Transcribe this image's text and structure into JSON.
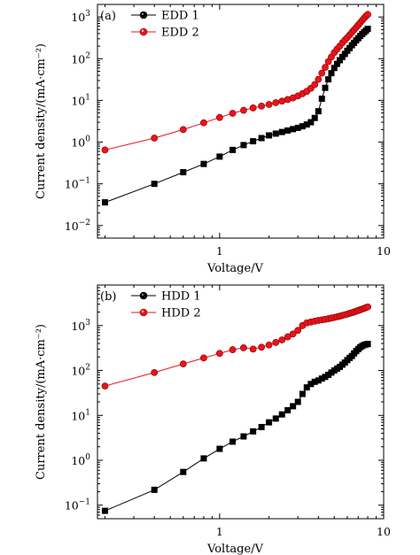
{
  "chart_data": [
    {
      "type": "line",
      "panel": "(a)",
      "xlabel": "Voltage/V",
      "ylabel": "Current density/(mA·cm⁻²)",
      "xscale": "log",
      "yscale": "log",
      "xlim": [
        0.18,
        10
      ],
      "ylim": [
        0.005,
        2000
      ],
      "xticks": [
        {
          "value": 1,
          "label": "1"
        },
        {
          "value": 10,
          "label": "10"
        }
      ],
      "yticks": [
        {
          "value": 0.01,
          "base": "10",
          "exp": "−2"
        },
        {
          "value": 0.1,
          "base": "10",
          "exp": "−1"
        },
        {
          "value": 1,
          "base": "10",
          "exp": "0"
        },
        {
          "value": 10,
          "base": "10",
          "exp": "1"
        },
        {
          "value": 100,
          "base": "10",
          "exp": "2"
        },
        {
          "value": 1000,
          "base": "10",
          "exp": "3"
        }
      ],
      "legend_position": "top-left",
      "series": [
        {
          "name": "EDD 1",
          "color": "#000000",
          "marker": "square",
          "x": [
            0.2,
            0.4,
            0.6,
            0.8,
            1.0,
            1.2,
            1.4,
            1.6,
            1.8,
            2.0,
            2.2,
            2.4,
            2.6,
            2.8,
            3.0,
            3.2,
            3.4,
            3.6,
            3.8,
            4.0,
            4.2,
            4.4,
            4.6,
            4.8,
            5.0,
            5.2,
            5.4,
            5.6,
            5.8,
            6.0,
            6.2,
            6.4,
            6.6,
            6.8,
            7.0,
            7.2,
            7.4,
            7.6,
            7.8,
            8.0
          ],
          "y": [
            0.036,
            0.1,
            0.19,
            0.3,
            0.45,
            0.65,
            0.85,
            1.05,
            1.25,
            1.45,
            1.6,
            1.75,
            1.9,
            2.05,
            2.2,
            2.4,
            2.65,
            3.0,
            3.8,
            5.5,
            11,
            20,
            32,
            45,
            60,
            75,
            92,
            110,
            130,
            155,
            180,
            210,
            240,
            275,
            310,
            350,
            390,
            430,
            470,
            520
          ]
        },
        {
          "name": "EDD 2",
          "color": "#e8141c",
          "marker": "circle",
          "x": [
            0.2,
            0.4,
            0.6,
            0.8,
            1.0,
            1.2,
            1.4,
            1.6,
            1.8,
            2.0,
            2.2,
            2.4,
            2.6,
            2.8,
            3.0,
            3.2,
            3.4,
            3.6,
            3.8,
            4.0,
            4.2,
            4.4,
            4.6,
            4.8,
            5.0,
            5.2,
            5.4,
            5.6,
            5.8,
            6.0,
            6.2,
            6.4,
            6.6,
            6.8,
            7.0,
            7.2,
            7.4,
            7.6,
            7.8,
            8.0
          ],
          "y": [
            0.65,
            1.25,
            2.0,
            2.9,
            3.9,
            4.9,
            5.8,
            6.6,
            7.3,
            8.0,
            8.8,
            9.6,
            10.5,
            11.5,
            12.8,
            14.5,
            16.5,
            19.5,
            24,
            32,
            45,
            62,
            85,
            110,
            140,
            170,
            200,
            240,
            280,
            320,
            370,
            430,
            490,
            560,
            640,
            730,
            830,
            940,
            1050,
            1150
          ]
        }
      ]
    },
    {
      "type": "line",
      "panel": "(b)",
      "xlabel": "Voltage/V",
      "ylabel": "Current density/(mA·cm⁻²)",
      "xscale": "log",
      "yscale": "log",
      "xlim": [
        0.18,
        10
      ],
      "ylim": [
        0.05,
        8000
      ],
      "xticks": [
        {
          "value": 1,
          "label": "1"
        },
        {
          "value": 10,
          "label": "10"
        }
      ],
      "yticks": [
        {
          "value": 0.1,
          "base": "10",
          "exp": "−1"
        },
        {
          "value": 1,
          "base": "10",
          "exp": "0"
        },
        {
          "value": 10,
          "base": "10",
          "exp": "1"
        },
        {
          "value": 100,
          "base": "10",
          "exp": "2"
        },
        {
          "value": 1000,
          "base": "10",
          "exp": "3"
        }
      ],
      "legend_position": "top-left",
      "series": [
        {
          "name": "HDD 1",
          "color": "#000000",
          "marker": "square",
          "x": [
            0.2,
            0.4,
            0.6,
            0.8,
            1.0,
            1.2,
            1.4,
            1.6,
            1.8,
            2.0,
            2.2,
            2.4,
            2.6,
            2.8,
            3.0,
            3.2,
            3.4,
            3.6,
            3.8,
            4.0,
            4.2,
            4.4,
            4.6,
            4.8,
            5.0,
            5.2,
            5.4,
            5.6,
            5.8,
            6.0,
            6.2,
            6.4,
            6.6,
            6.8,
            7.0,
            7.2,
            7.4,
            7.6,
            7.8,
            8.0
          ],
          "y": [
            0.075,
            0.22,
            0.55,
            1.1,
            1.8,
            2.6,
            3.4,
            4.4,
            5.5,
            7.0,
            8.5,
            10.5,
            13,
            16,
            20,
            30,
            42,
            50,
            56,
            60,
            66,
            72,
            80,
            90,
            100,
            110,
            120,
            135,
            150,
            170,
            190,
            210,
            240,
            270,
            300,
            330,
            350,
            370,
            380,
            390
          ]
        },
        {
          "name": "HDD 2",
          "color": "#e8141c",
          "marker": "circle",
          "x": [
            0.2,
            0.4,
            0.6,
            0.8,
            1.0,
            1.2,
            1.4,
            1.6,
            1.8,
            2.0,
            2.2,
            2.4,
            2.6,
            2.8,
            3.0,
            3.2,
            3.4,
            3.6,
            3.8,
            4.0,
            4.2,
            4.4,
            4.6,
            4.8,
            5.0,
            5.2,
            5.4,
            5.6,
            5.8,
            6.0,
            6.2,
            6.4,
            6.6,
            6.8,
            7.0,
            7.2,
            7.4,
            7.6,
            7.8,
            8.0
          ],
          "y": [
            45,
            90,
            140,
            190,
            240,
            290,
            320,
            300,
            330,
            370,
            420,
            480,
            560,
            650,
            780,
            1000,
            1150,
            1200,
            1250,
            1300,
            1340,
            1380,
            1420,
            1470,
            1520,
            1570,
            1620,
            1680,
            1740,
            1800,
            1870,
            1940,
            2010,
            2090,
            2170,
            2250,
            2330,
            2420,
            2510,
            2600
          ]
        }
      ]
    }
  ]
}
